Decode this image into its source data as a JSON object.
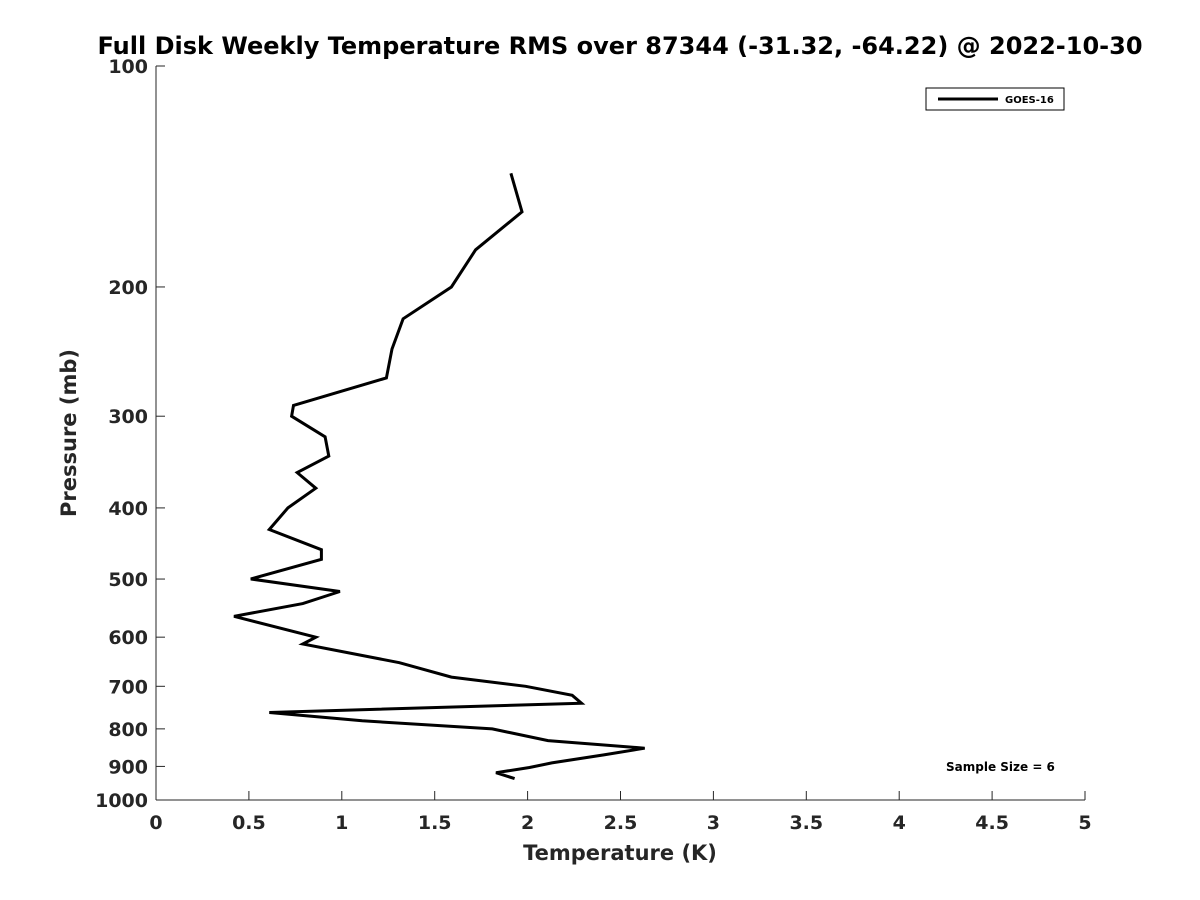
{
  "chart_data": {
    "type": "line",
    "title": "Full Disk Weekly Temperature RMS over 87344 (-31.32, -64.22) @ 2022-10-30",
    "xlabel": "Temperature (K)",
    "ylabel": "Pressure (mb)",
    "xlim": [
      0,
      5
    ],
    "ylim": [
      100,
      1000
    ],
    "yscale": "log",
    "ydirection": "reverse",
    "xticks": [
      0,
      0.5,
      1,
      1.5,
      2,
      2.5,
      3,
      3.5,
      4,
      4.5,
      5
    ],
    "xtick_labels": [
      "0",
      "0.5",
      "1",
      "1.5",
      "2",
      "2.5",
      "3",
      "3.5",
      "4",
      "4.5",
      "5"
    ],
    "yticks": [
      100,
      200,
      300,
      400,
      500,
      600,
      700,
      800,
      900,
      1000
    ],
    "ytick_labels": [
      "100",
      "200",
      "300",
      "400",
      "500",
      "600",
      "700",
      "800",
      "900",
      "1000"
    ],
    "legend_position": "top-right",
    "annotation": "Sample Size = 6",
    "series": [
      {
        "name": "GOES-16",
        "color": "#000000",
        "points": [
          {
            "x": 1.91,
            "p": 140
          },
          {
            "x": 1.97,
            "p": 158
          },
          {
            "x": 1.72,
            "p": 178
          },
          {
            "x": 1.59,
            "p": 200
          },
          {
            "x": 1.33,
            "p": 221
          },
          {
            "x": 1.27,
            "p": 243
          },
          {
            "x": 1.24,
            "p": 266
          },
          {
            "x": 0.74,
            "p": 290
          },
          {
            "x": 0.73,
            "p": 300
          },
          {
            "x": 0.91,
            "p": 320
          },
          {
            "x": 0.93,
            "p": 340
          },
          {
            "x": 0.76,
            "p": 358
          },
          {
            "x": 0.86,
            "p": 376
          },
          {
            "x": 0.71,
            "p": 400
          },
          {
            "x": 0.61,
            "p": 428
          },
          {
            "x": 0.89,
            "p": 456
          },
          {
            "x": 0.89,
            "p": 470
          },
          {
            "x": 0.51,
            "p": 500
          },
          {
            "x": 0.99,
            "p": 520
          },
          {
            "x": 0.79,
            "p": 540
          },
          {
            "x": 0.42,
            "p": 562
          },
          {
            "x": 0.86,
            "p": 600
          },
          {
            "x": 0.79,
            "p": 613
          },
          {
            "x": 1.31,
            "p": 650
          },
          {
            "x": 1.59,
            "p": 680
          },
          {
            "x": 1.99,
            "p": 700
          },
          {
            "x": 2.24,
            "p": 720
          },
          {
            "x": 2.29,
            "p": 738
          },
          {
            "x": 0.61,
            "p": 760
          },
          {
            "x": 1.11,
            "p": 780
          },
          {
            "x": 1.81,
            "p": 800
          },
          {
            "x": 2.11,
            "p": 830
          },
          {
            "x": 2.63,
            "p": 850
          },
          {
            "x": 2.41,
            "p": 868
          },
          {
            "x": 2.13,
            "p": 890
          },
          {
            "x": 2.01,
            "p": 903
          },
          {
            "x": 1.83,
            "p": 918
          },
          {
            "x": 1.93,
            "p": 935
          }
        ]
      }
    ]
  }
}
